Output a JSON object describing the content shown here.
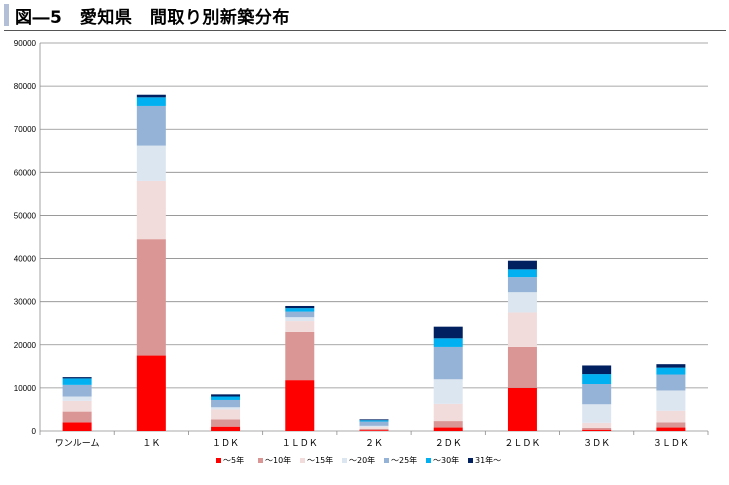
{
  "header": {
    "title": "図―5　愛知県　間取り別新築分布"
  },
  "chart_data": {
    "type": "bar",
    "stacked": true,
    "title": "図―5　愛知県　間取り別新築分布",
    "categories": [
      "ワンルーム",
      "１Ｋ",
      "１ＤＫ",
      "１ＬＤＫ",
      "２Ｋ",
      "２ＤＫ",
      "２ＬＤＫ",
      "３ＤＫ",
      "３ＬＤＫ"
    ],
    "ylim": [
      0,
      90000
    ],
    "yticks": [
      0,
      10000,
      20000,
      30000,
      40000,
      50000,
      60000,
      70000,
      80000,
      90000
    ],
    "grid": true,
    "legend_position": "bottom",
    "series": [
      {
        "name": "～5年",
        "color": "#ff0000",
        "values": [
          2000,
          17500,
          1000,
          11800,
          200,
          800,
          10000,
          300,
          800
        ]
      },
      {
        "name": "～10年",
        "color": "#da9694",
        "values": [
          2500,
          27000,
          1700,
          11200,
          300,
          1500,
          9500,
          400,
          1200
        ]
      },
      {
        "name": "～15年",
        "color": "#f2dcdb",
        "values": [
          2500,
          13500,
          2300,
          2500,
          400,
          4000,
          8000,
          1200,
          2700
        ]
      },
      {
        "name": "～20年",
        "color": "#dce6f1",
        "values": [
          1000,
          8200,
          500,
          900,
          300,
          5700,
          4700,
          4300,
          4700
        ]
      },
      {
        "name": "～25年",
        "color": "#95b3d7",
        "values": [
          2700,
          9200,
          1700,
          1300,
          1000,
          7500,
          3500,
          4700,
          3700
        ]
      },
      {
        "name": "～30年",
        "color": "#00b0f0",
        "values": [
          1500,
          2000,
          800,
          800,
          300,
          2000,
          1800,
          2300,
          1600
        ]
      },
      {
        "name": "31年～",
        "color": "#002060",
        "values": [
          300,
          600,
          500,
          500,
          200,
          2700,
          2000,
          2000,
          800
        ]
      }
    ]
  }
}
